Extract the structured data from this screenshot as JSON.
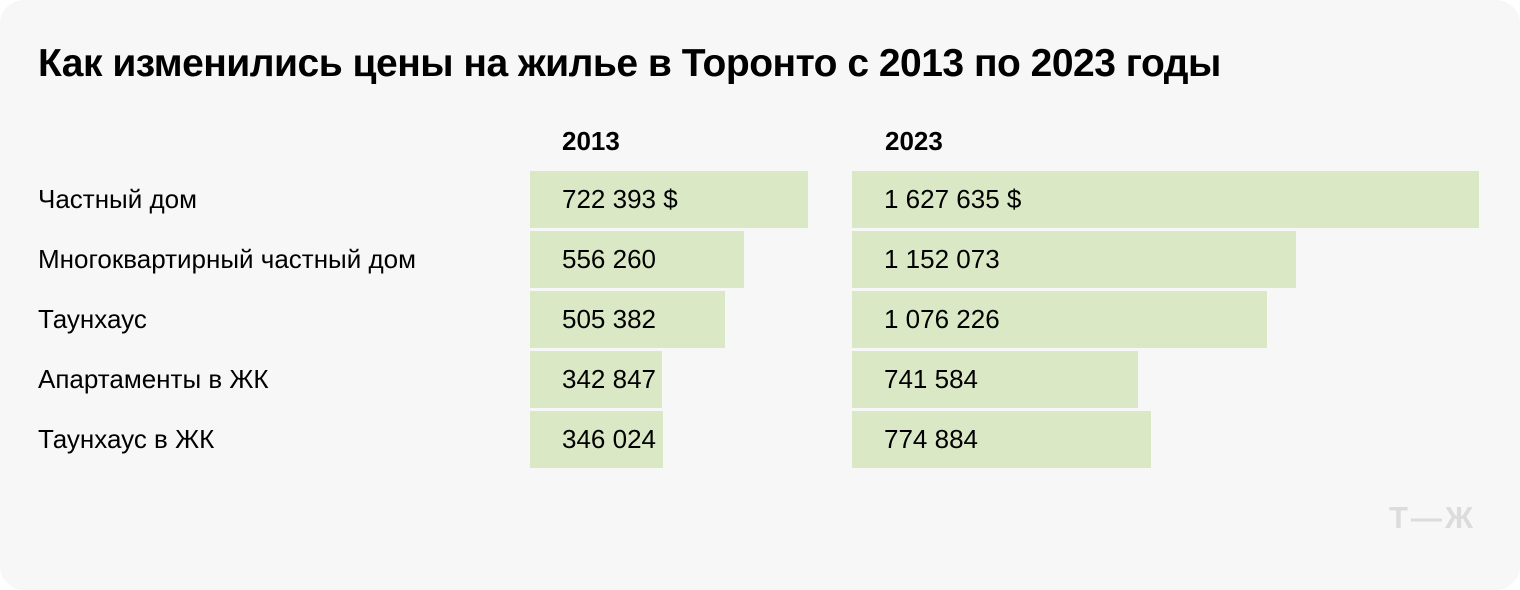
{
  "chart_data": {
    "type": "bar",
    "orientation": "horizontal",
    "title": "Как изменились цены на жилье в Торонто с 2013 по 2023 годы",
    "categories": [
      "Частный дом",
      "Многоквартирный частный дом",
      "Таунхаус",
      "Апартаменты в ЖК",
      "Таунхаус в ЖК"
    ],
    "series": [
      {
        "name": "2013",
        "values": [
          722393,
          556260,
          505382,
          342847,
          346024
        ],
        "labels": [
          "722 393 $",
          "556 260",
          "505 382",
          "342 847",
          "346 024"
        ]
      },
      {
        "name": "2023",
        "values": [
          1627635,
          1152073,
          1076226,
          741584,
          774884
        ],
        "labels": [
          "1 627 635 $",
          "1 152 073",
          "1 076 226",
          "741 584",
          "774 884"
        ]
      }
    ],
    "unit": "$",
    "max_value": 1627635,
    "value_axis_hidden": true,
    "grid": false,
    "legend_position": "column-headers",
    "bar_color": "#dbe8c6"
  },
  "footer": {
    "logo": "Т—Ж"
  },
  "colors": {
    "background": "#f7f7f8",
    "bar": "#dbe8c6",
    "text": "#000000",
    "logo": "#dcdcdc"
  }
}
